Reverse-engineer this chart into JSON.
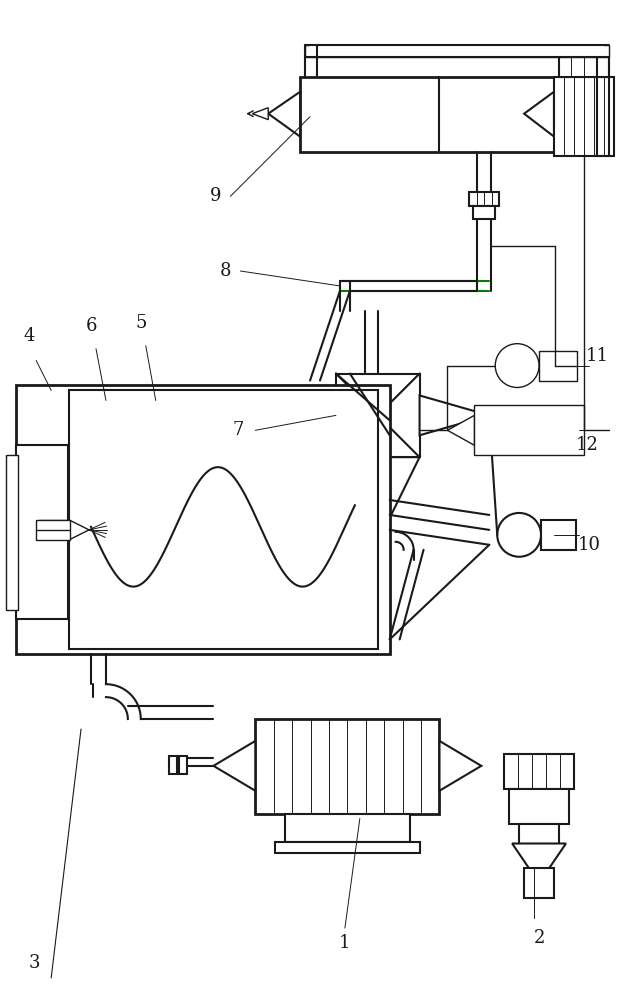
{
  "bg_color": "#ffffff",
  "line_color": "#1a1a1a",
  "green_color": "#008000",
  "lw_main": 1.5,
  "lw_thin": 1.0,
  "lw_thick": 2.0
}
